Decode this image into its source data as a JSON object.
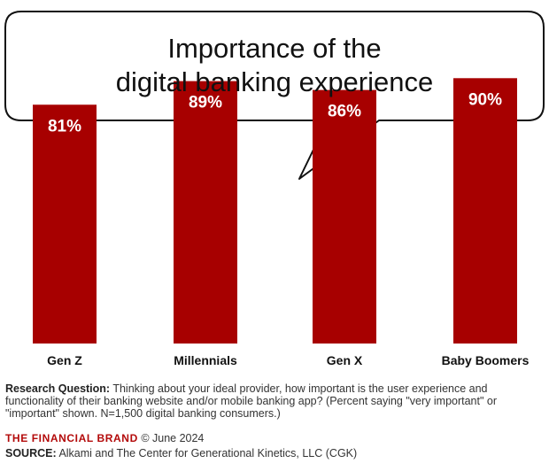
{
  "chart_data": {
    "type": "bar",
    "title": "Importance of the digital banking experience",
    "title_lines": [
      "Importance of the",
      "digital banking experience"
    ],
    "categories": [
      "Gen Z",
      "Millennials",
      "Gen X",
      "Baby Boomers"
    ],
    "values": [
      81,
      89,
      86,
      90
    ],
    "value_labels": [
      "81%",
      "89%",
      "86%",
      "90%"
    ],
    "ylim": [
      0,
      100
    ],
    "grid": false,
    "bar_color": "#a70000"
  },
  "footer": {
    "research_label": "Research Question:",
    "research_text": " Thinking about your ideal provider, how important is the user experience and functionality of their banking website and/or mobile banking app? (Percent saying \"very important\" or \"important\" shown. N=1,500 digital banking consumers.)",
    "brand": "THE FINANCIAL BRAND",
    "date": " © June 2024",
    "source_label": "SOURCE:",
    "source_text": " Alkami and The Center for Generational Kinetics, LLC (CGK)"
  }
}
